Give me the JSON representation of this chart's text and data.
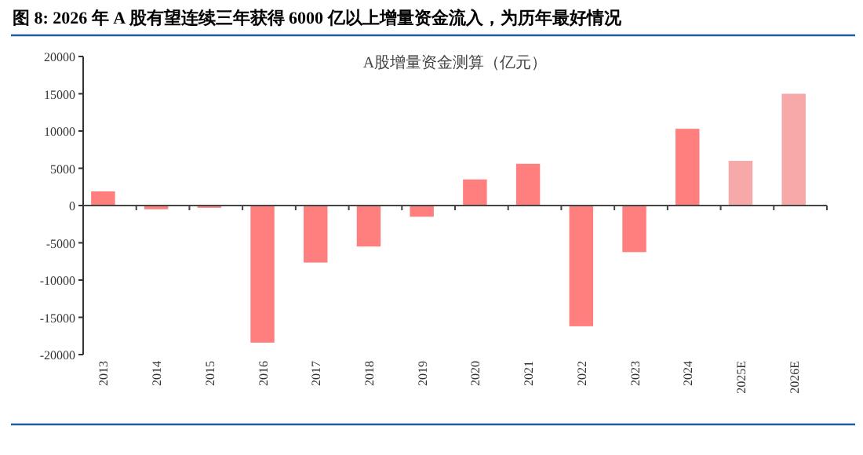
{
  "chart_data": {
    "type": "bar",
    "title": "图 8: 2026 年 A 股有望连续三年获得 6000 亿以上增量资金流入，为历年最好情况",
    "subtitle": "A股增量资金测算（亿元）",
    "categories": [
      "2013",
      "2014",
      "2015",
      "2016",
      "2017",
      "2018",
      "2019",
      "2020",
      "2021",
      "2022",
      "2023",
      "2024",
      "2025E",
      "2026E"
    ],
    "values": [
      1900,
      -500,
      -300,
      -18400,
      -7650,
      -5500,
      -1500,
      3500,
      5600,
      -16200,
      -6250,
      10300,
      6000,
      15000
    ],
    "colors": [
      "#ff7f7f",
      "#ff7f7f",
      "#ff7f7f",
      "#ff7f7f",
      "#ff7f7f",
      "#ff7f7f",
      "#ff7f7f",
      "#ff7f7f",
      "#ff7f7f",
      "#ff7f7f",
      "#ff7f7f",
      "#ff7f7f",
      "#f7a8a8",
      "#f7a8a8"
    ],
    "ylim": [
      -20000,
      20000
    ],
    "yticks": [
      -20000,
      -15000,
      -10000,
      -5000,
      0,
      5000,
      10000,
      15000,
      20000
    ]
  }
}
